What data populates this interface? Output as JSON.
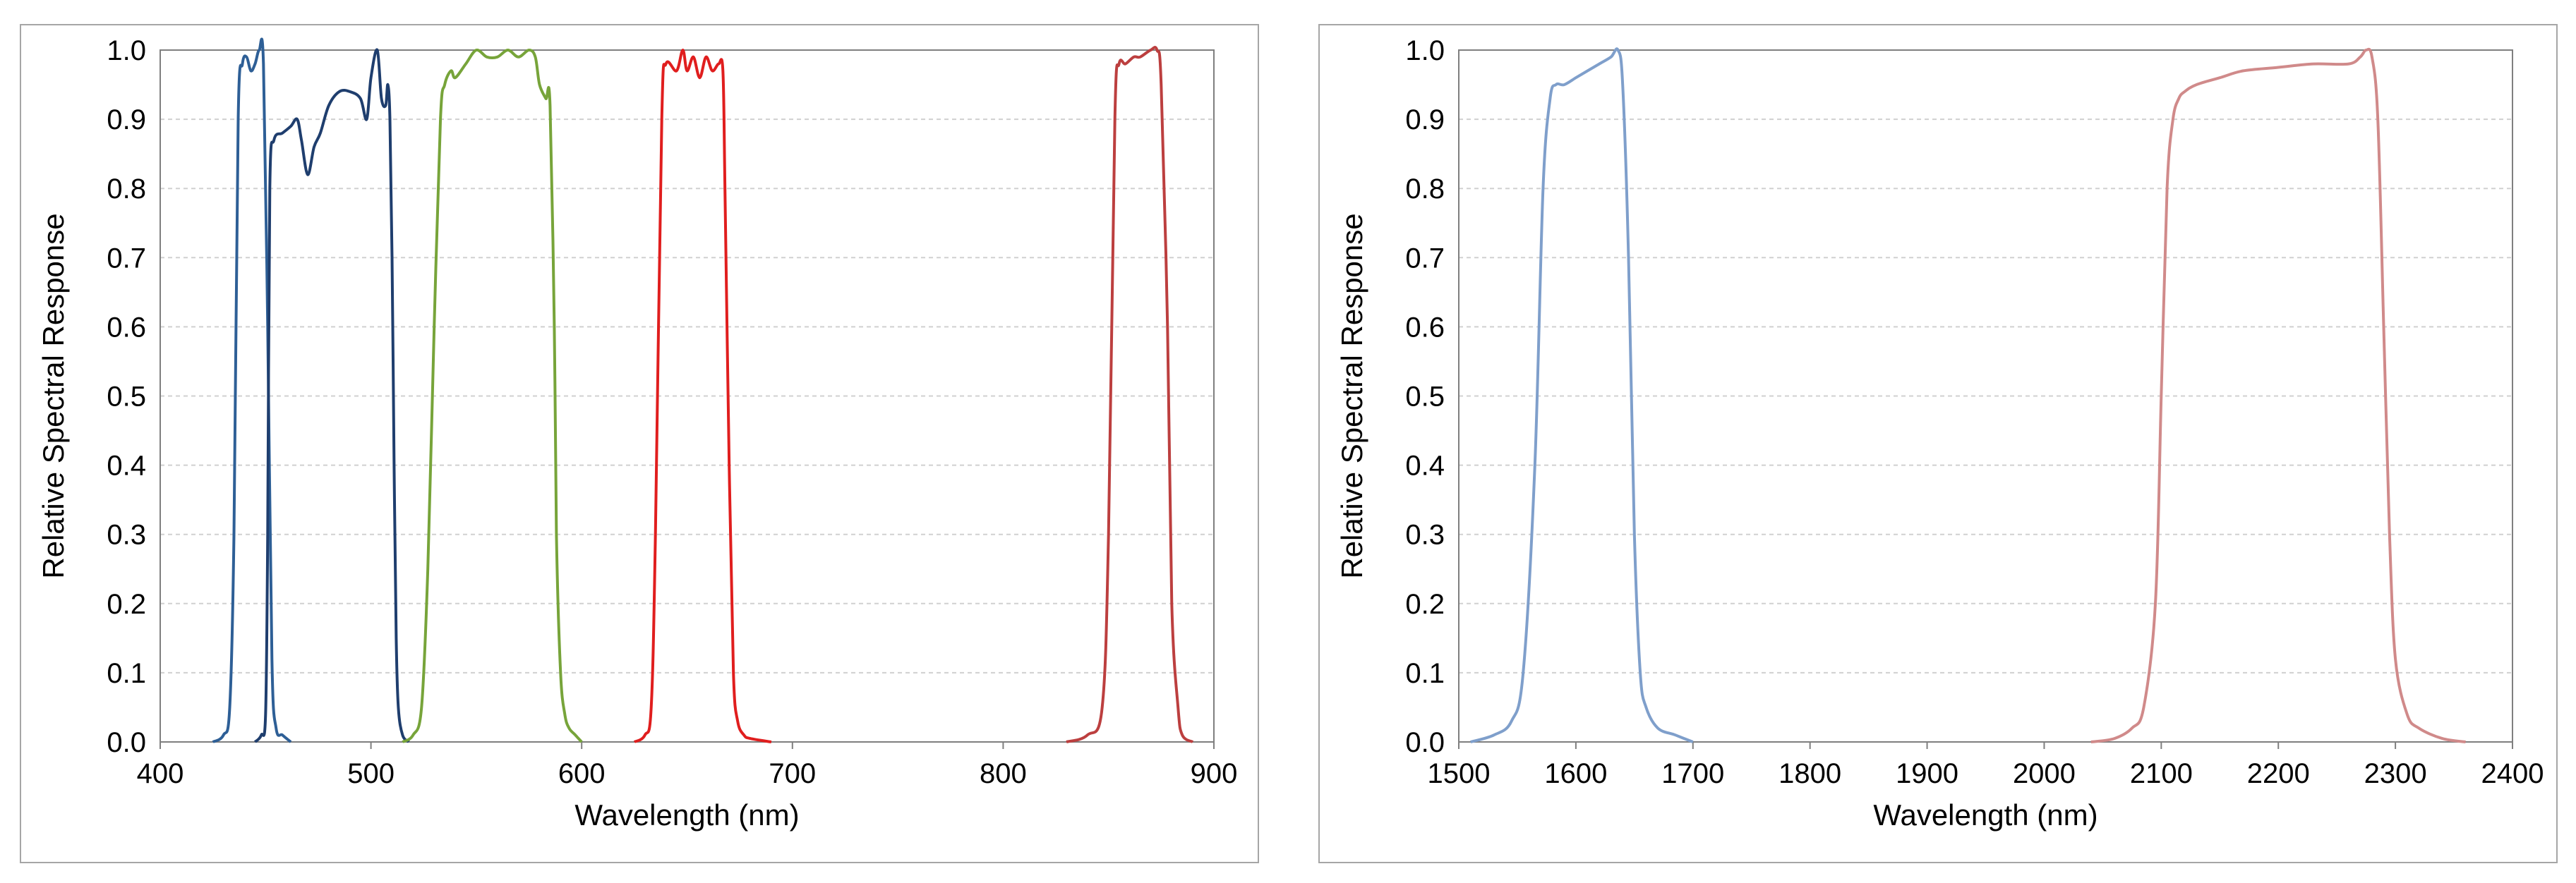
{
  "chart_data": [
    {
      "type": "line",
      "xlabel": "Wavelength (nm)",
      "ylabel": "Relative Spectral Response",
      "xlim": [
        400,
        900
      ],
      "ylim": [
        0,
        1.0
      ],
      "xticks": [
        "400",
        "500",
        "600",
        "700",
        "800",
        "900"
      ],
      "yticks": [
        "0.0",
        "0.1",
        "0.2",
        "0.3",
        "0.4",
        "0.5",
        "0.6",
        "0.7",
        "0.8",
        "0.9",
        "1.0"
      ],
      "grid": "horizontal dashed",
      "series": [
        {
          "color": "#2e5f96",
          "x": [
            425,
            430,
            433,
            435,
            437,
            439,
            441,
            443,
            445,
            447,
            449,
            451,
            453,
            455,
            458,
            462
          ],
          "y": [
            0,
            0.01,
            0.05,
            0.3,
            0.9,
            0.98,
            0.99,
            0.97,
            0.98,
            1.0,
            0.98,
            0.6,
            0.12,
            0.02,
            0.01,
            0
          ]
        },
        {
          "color": "#1f3e6e",
          "x": [
            445,
            448,
            450,
            451,
            452,
            454,
            458,
            462,
            465,
            467,
            470,
            473,
            476,
            480,
            485,
            490,
            495,
            498,
            500,
            503,
            505,
            507,
            508,
            509,
            510,
            511,
            512,
            513,
            515,
            518
          ],
          "y": [
            0,
            0.01,
            0.04,
            0.3,
            0.8,
            0.87,
            0.88,
            0.89,
            0.9,
            0.87,
            0.82,
            0.86,
            0.88,
            0.92,
            0.94,
            0.94,
            0.93,
            0.9,
            0.96,
            1.0,
            0.93,
            0.92,
            0.95,
            0.9,
            0.7,
            0.4,
            0.15,
            0.05,
            0.01,
            0
          ]
        },
        {
          "color": "#77a43a",
          "x": [
            515,
            520,
            524,
            527,
            530,
            533,
            535,
            538,
            540,
            545,
            550,
            555,
            560,
            565,
            570,
            575,
            578,
            580,
            583,
            585,
            587,
            588,
            590,
            592,
            594,
            597,
            600
          ],
          "y": [
            0,
            0.01,
            0.05,
            0.25,
            0.6,
            0.9,
            0.95,
            0.97,
            0.96,
            0.98,
            1.0,
            0.99,
            0.99,
            1.0,
            0.99,
            1.0,
            0.99,
            0.95,
            0.93,
            0.92,
            0.6,
            0.3,
            0.1,
            0.04,
            0.02,
            0.01,
            0
          ]
        },
        {
          "color": "#e01e1e",
          "x": [
            625,
            630,
            633,
            635,
            638,
            640,
            645,
            648,
            650,
            653,
            656,
            659,
            662,
            665,
            667,
            668,
            670,
            672,
            674,
            677,
            680,
            690
          ],
          "y": [
            0,
            0.01,
            0.05,
            0.3,
            0.9,
            0.98,
            0.97,
            1.0,
            0.97,
            0.99,
            0.96,
            0.99,
            0.97,
            0.98,
            0.97,
            0.8,
            0.4,
            0.1,
            0.03,
            0.01,
            0.005,
            0
          ]
        },
        {
          "color": "#bc3f3f",
          "x": [
            830,
            840,
            847,
            850,
            853,
            855,
            858,
            862,
            865,
            870,
            873,
            875,
            878,
            880,
            883,
            885,
            890
          ],
          "y": [
            0,
            0.01,
            0.05,
            0.3,
            0.9,
            0.98,
            0.98,
            0.99,
            0.99,
            1.0,
            1.0,
            0.95,
            0.6,
            0.2,
            0.05,
            0.01,
            0
          ]
        }
      ]
    },
    {
      "type": "line",
      "xlabel": "Wavelength (nm)",
      "ylabel": "Relative Spectral Response",
      "xlim": [
        1500,
        2400
      ],
      "ylim": [
        0,
        1.0
      ],
      "xticks": [
        "1500",
        "1600",
        "1700",
        "1800",
        "1900",
        "2000",
        "2100",
        "2200",
        "2300",
        "2400"
      ],
      "yticks": [
        "0.0",
        "0.1",
        "0.2",
        "0.3",
        "0.4",
        "0.5",
        "0.6",
        "0.7",
        "0.8",
        "0.9",
        "1.0"
      ],
      "grid": "horizontal dashed",
      "series": [
        {
          "color": "#7f9fcb",
          "x": [
            1510,
            1530,
            1545,
            1555,
            1565,
            1572,
            1578,
            1583,
            1590,
            1600,
            1610,
            1620,
            1630,
            1636,
            1640,
            1645,
            1650,
            1655,
            1660,
            1670,
            1685,
            1700
          ],
          "y": [
            0,
            0.01,
            0.03,
            0.1,
            0.4,
            0.8,
            0.93,
            0.95,
            0.95,
            0.96,
            0.97,
            0.98,
            0.99,
            1.0,
            0.95,
            0.7,
            0.3,
            0.1,
            0.05,
            0.02,
            0.01,
            0
          ]
        },
        {
          "color": "#d08a8a",
          "x": [
            2040,
            2060,
            2075,
            2085,
            2095,
            2100,
            2105,
            2110,
            2115,
            2120,
            2130,
            2150,
            2170,
            2200,
            2230,
            2260,
            2270,
            2275,
            2280,
            2285,
            2290,
            2295,
            2300,
            2310,
            2320,
            2340,
            2360
          ],
          "y": [
            0,
            0.005,
            0.02,
            0.05,
            0.2,
            0.5,
            0.8,
            0.9,
            0.93,
            0.94,
            0.95,
            0.96,
            0.97,
            0.975,
            0.98,
            0.98,
            0.99,
            1.0,
            0.99,
            0.9,
            0.6,
            0.3,
            0.12,
            0.04,
            0.02,
            0.005,
            0
          ]
        }
      ]
    }
  ]
}
